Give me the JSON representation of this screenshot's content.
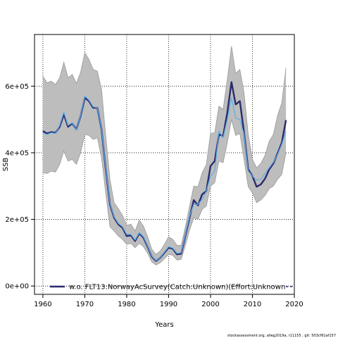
{
  "chart_data": {
    "type": "line",
    "xlabel": "Years",
    "ylabel": "SSB",
    "xlim": [
      1958,
      2020
    ],
    "ylim": [
      -25000,
      755000
    ],
    "xticks": [
      1960,
      1970,
      1980,
      1990,
      2000,
      2010,
      2020
    ],
    "yticks": [
      {
        "value": 0,
        "label": "0e+00"
      },
      {
        "value": 200000,
        "label": "2e+05"
      },
      {
        "value": 400000,
        "label": "4e+05"
      },
      {
        "value": 600000,
        "label": "6e+05"
      }
    ],
    "grid": true,
    "legend": {
      "placement": "bottom-left",
      "label": "w.o. FLT13:NorwayAcSurvey(Catch:Unknown)(Effort:Unknown"
    },
    "colors": {
      "band": "#bdbdbd",
      "ci_line": "#9a9a9a",
      "main": "#2b2a6e",
      "alt": "#5ab0e8"
    },
    "x": [
      1960,
      1961,
      1962,
      1963,
      1964,
      1965,
      1966,
      1967,
      1968,
      1969,
      1970,
      1971,
      1972,
      1973,
      1974,
      1975,
      1976,
      1977,
      1978,
      1979,
      1980,
      1981,
      1982,
      1983,
      1984,
      1985,
      1986,
      1987,
      1988,
      1989,
      1990,
      1991,
      1992,
      1993,
      1994,
      1995,
      1996,
      1997,
      1998,
      1999,
      2000,
      2001,
      2002,
      2003,
      2004,
      2005,
      2006,
      2007,
      2008,
      2009,
      2010,
      2011,
      2012,
      2013,
      2014,
      2015,
      2016,
      2017,
      2018
    ],
    "series": [
      {
        "name": "w.o. FLT13:NorwayAcSurvey(Catch:Unknown)(Effort:Unknown",
        "role": "main",
        "values": [
          465000,
          458000,
          462000,
          460000,
          478000,
          515000,
          478000,
          488000,
          470000,
          510000,
          565000,
          555000,
          535000,
          535000,
          470000,
          350000,
          245000,
          205000,
          185000,
          175000,
          150000,
          152000,
          135000,
          158000,
          145000,
          118000,
          88000,
          75000,
          85000,
          100000,
          115000,
          112000,
          95000,
          97000,
          150000,
          205000,
          258000,
          242000,
          275000,
          285000,
          360000,
          375000,
          455000,
          450000,
          520000,
          612000,
          545000,
          555000,
          460000,
          350000,
          330000,
          298000,
          305000,
          322000,
          350000,
          368000,
          398000,
          430000,
          498000
        ]
      },
      {
        "name": "",
        "role": "alt",
        "values": [
          460000,
          455000,
          460000,
          458000,
          482000,
          522000,
          482000,
          490000,
          468000,
          512000,
          570000,
          558000,
          538000,
          535000,
          472000,
          352000,
          248000,
          208000,
          188000,
          178000,
          155000,
          155000,
          138000,
          160000,
          148000,
          120000,
          90000,
          76000,
          86000,
          102000,
          118000,
          114000,
          98000,
          100000,
          152000,
          210000,
          245000,
          245000,
          260000,
          285000,
          330000,
          345000,
          465000,
          445000,
          500000,
          565000,
          505000,
          500000,
          455000,
          345000,
          330000,
          318000,
          320000,
          338000,
          355000,
          372000,
          395000,
          425000,
          465000
        ]
      }
    ],
    "band_upper": [
      630000,
      610000,
      615000,
      605000,
      625000,
      672000,
      625000,
      635000,
      608000,
      642000,
      700000,
      680000,
      650000,
      645000,
      590000,
      450000,
      320000,
      250000,
      232000,
      212000,
      182000,
      186000,
      165000,
      198000,
      180000,
      148000,
      110000,
      95000,
      105000,
      125000,
      148000,
      140000,
      122000,
      122000,
      178000,
      240000,
      300000,
      298000,
      340000,
      365000,
      458000,
      460000,
      540000,
      530000,
      620000,
      720000,
      638000,
      650000,
      580000,
      455000,
      380000,
      355000,
      368000,
      392000,
      435000,
      455000,
      512000,
      550000,
      655000
    ],
    "band_lower": [
      340000,
      338000,
      345000,
      342000,
      365000,
      405000,
      375000,
      380000,
      365000,
      400000,
      455000,
      452000,
      440000,
      445000,
      385000,
      278000,
      178000,
      165000,
      150000,
      140000,
      125000,
      128000,
      115000,
      128000,
      118000,
      98000,
      72000,
      63000,
      70000,
      82000,
      95000,
      92000,
      78000,
      80000,
      122000,
      168000,
      205000,
      200000,
      230000,
      240000,
      300000,
      310000,
      375000,
      370000,
      430000,
      500000,
      452000,
      458000,
      380000,
      298000,
      280000,
      250000,
      258000,
      272000,
      292000,
      300000,
      320000,
      335000,
      400000
    ]
  },
  "footer": "stockassessment.org, afwg2019a, r11155 , git: 503cf91af157"
}
